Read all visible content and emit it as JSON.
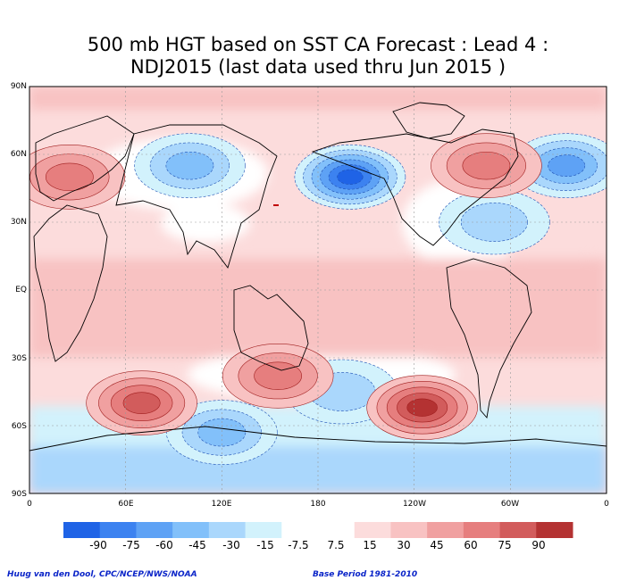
{
  "title_line1": "500 mb HGT based on SST CA Forecast : Lead 4 :",
  "title_line2": "NDJ2015 (last data used thru Jun 2015 )",
  "lat_labels": [
    "90N",
    "60N",
    "30N",
    "EQ",
    "30S",
    "60S",
    "90S"
  ],
  "lon_labels": [
    "0",
    "60E",
    "120E",
    "180",
    "120W",
    "60W",
    "0"
  ],
  "colorbar": {
    "colors": [
      "#1f63e6",
      "#3c82f0",
      "#5ea2f5",
      "#82c0fa",
      "#aad7fc",
      "#d2f2fc",
      "#ffffff",
      "#ffffff",
      "#fcdcdc",
      "#f8c2c2",
      "#f0a0a0",
      "#e67e7e",
      "#d25c5c",
      "#b43232"
    ],
    "labels": [
      "-90",
      "-75",
      "-60",
      "-45",
      "-30",
      "-15",
      "-7.5",
      "7.5",
      "15",
      "30",
      "45",
      "60",
      "75",
      "90"
    ]
  },
  "anomaly_centers": [
    {
      "lon": 200,
      "lat": 50,
      "value": -90
    },
    {
      "lon": 335,
      "lat": 55,
      "value": -60
    },
    {
      "lon": 100,
      "lat": 55,
      "value": -45
    },
    {
      "lon": 290,
      "lat": 30,
      "value": -30
    },
    {
      "lon": 120,
      "lat": -63,
      "value": -45
    },
    {
      "lon": 195,
      "lat": -45,
      "value": -30
    },
    {
      "lon": 245,
      "lat": -52,
      "value": 75
    },
    {
      "lon": 70,
      "lat": -50,
      "value": 60
    },
    {
      "lon": 155,
      "lat": -38,
      "value": 45
    },
    {
      "lon": 285,
      "lat": 55,
      "value": 45
    },
    {
      "lon": 25,
      "lat": 50,
      "value": 45
    }
  ],
  "credit": "Huug van den Dool, CPC/NCEP/NWS/NOAA",
  "base_period": "Base Period 1981-2010"
}
